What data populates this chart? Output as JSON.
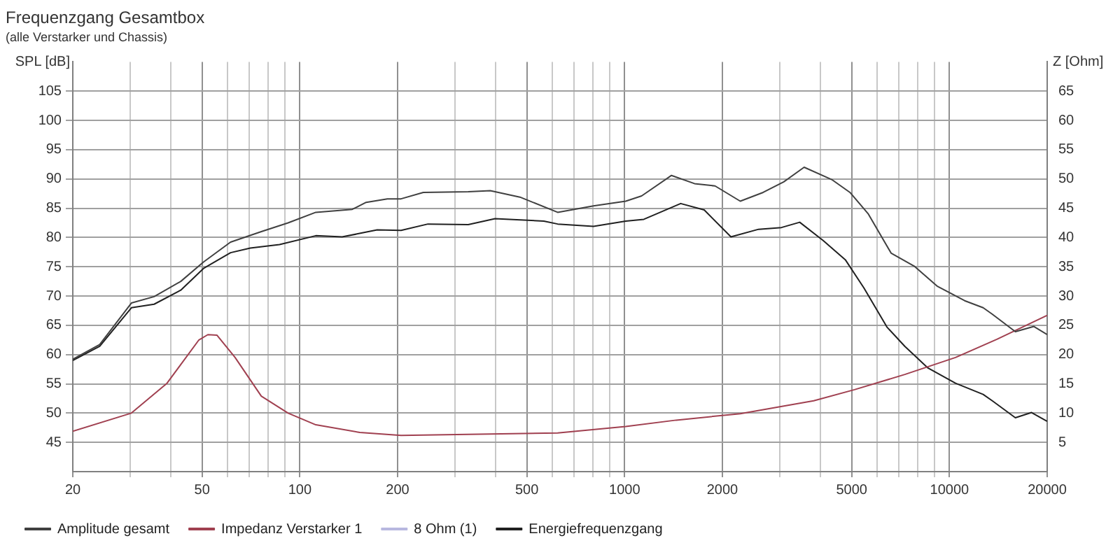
{
  "chart_data": {
    "type": "line",
    "title": "Frequenzgang Gesamtbox",
    "subtitle": "(alle Verstarker und Chassis)",
    "xlabel": null,
    "ylabel": "SPL [dB]",
    "y2label": "Z [Ohm]",
    "log": "x",
    "grid": true,
    "legend": "bottom",
    "marker": "none",
    "line_style": "solid",
    "xlim": [
      20,
      20000
    ],
    "xticks": [
      20,
      {
        "value": 30,
        "label": null
      },
      {
        "value": 40,
        "label": null
      },
      50,
      {
        "value": 60,
        "label": null
      },
      {
        "value": 70,
        "label": null
      },
      {
        "value": 80,
        "label": null
      },
      {
        "value": 90,
        "label": null
      },
      100,
      200,
      {
        "value": 300,
        "label": null
      },
      {
        "value": 400,
        "label": null
      },
      500,
      {
        "value": 600,
        "label": null
      },
      {
        "value": 700,
        "label": null
      },
      {
        "value": 800,
        "label": null
      },
      {
        "value": 900,
        "label": null
      },
      1000,
      2000,
      {
        "value": 3000,
        "label": null
      },
      {
        "value": 4000,
        "label": null
      },
      5000,
      {
        "value": 6000,
        "label": null
      },
      {
        "value": 7000,
        "label": null
      },
      {
        "value": 8000,
        "label": null
      },
      {
        "value": 9000,
        "label": null
      },
      10000,
      20000
    ],
    "ylim": [
      40,
      110
    ],
    "yticks": [
      45,
      50,
      55,
      60,
      65,
      70,
      75,
      80,
      85,
      90,
      95,
      100,
      105
    ],
    "y2lim": [
      0,
      70
    ],
    "y2ticks": [
      5,
      10,
      15,
      20,
      25,
      30,
      35,
      40,
      45,
      50,
      55,
      60,
      65
    ],
    "series": [
      {
        "name": "Amplitude gesamt",
        "color": "#404040",
        "x": [
          20,
          24.2,
          30.3,
          35.6,
          43,
          50.5,
          61.2,
          76.1,
          92,
          112,
          145,
          160,
          186,
          205,
          240,
          330,
          386,
          476,
          622,
          802,
          1008,
          1128,
          1394,
          1641,
          1899,
          2270,
          2670,
          3090,
          3570,
          4340,
          4940,
          5630,
          6620,
          7790,
          9160,
          11140,
          12700,
          13550,
          15960,
          18200,
          20000
        ],
        "values": [
          59.2,
          61.7,
          68.8,
          69.9,
          72.5,
          75.8,
          79.2,
          81.0,
          82.5,
          84.3,
          84.8,
          86.0,
          86.6,
          86.6,
          87.7,
          87.8,
          88.0,
          86.9,
          84.3,
          85.4,
          86.2,
          87.1,
          90.6,
          89.2,
          88.8,
          86.2,
          87.7,
          89.5,
          92.0,
          89.9,
          87.7,
          84.0,
          77.3,
          75.1,
          71.7,
          69.2,
          68.0,
          66.9,
          63.9,
          64.8,
          63.4
        ]
      },
      {
        "name": "Impedanz Verstarker 1",
        "color": "#a04050",
        "axis": "y2",
        "x": [
          20,
          30.3,
          39,
          48.9,
          52.1,
          55.6,
          63.2,
          76.1,
          92,
          112,
          153,
          205,
          622,
          1008,
          1442,
          2270,
          3820,
          5100,
          7290,
          10440,
          14000,
          20000
        ],
        "values": [
          6.9,
          10.0,
          15.1,
          22.5,
          23.4,
          23.3,
          19.5,
          12.9,
          10.0,
          8.0,
          6.7,
          6.2,
          6.6,
          7.7,
          8.8,
          9.9,
          12.1,
          14.0,
          16.6,
          19.5,
          22.6,
          26.7
        ]
      },
      {
        "name": "8 Ohm (1)",
        "color": "#b8b8e0"
      },
      {
        "name": "Energiefrequenzgang",
        "color": "#202020",
        "x": [
          20,
          24.2,
          30.3,
          35.6,
          43,
          50.5,
          61.2,
          70.4,
          86.6,
          112,
          135,
          150,
          173,
          205,
          248,
          330,
          399,
          564,
          622,
          802,
          1008,
          1146,
          1488,
          1758,
          2125,
          2585,
          3040,
          3460,
          4080,
          4780,
          5450,
          6420,
          7290,
          8590,
          10440,
          12700,
          13550,
          15960,
          17900,
          20000
        ],
        "values": [
          59.0,
          61.4,
          68.0,
          68.6,
          71.0,
          74.7,
          77.4,
          78.2,
          78.8,
          80.3,
          80.1,
          80.6,
          81.3,
          81.2,
          82.3,
          82.2,
          83.2,
          82.8,
          82.3,
          81.9,
          82.8,
          83.1,
          85.8,
          84.7,
          80.1,
          81.4,
          81.7,
          82.6,
          79.5,
          76.2,
          71.4,
          64.7,
          61.4,
          57.7,
          55.1,
          53.2,
          52.1,
          49.2,
          50.1,
          48.6
        ]
      }
    ]
  }
}
